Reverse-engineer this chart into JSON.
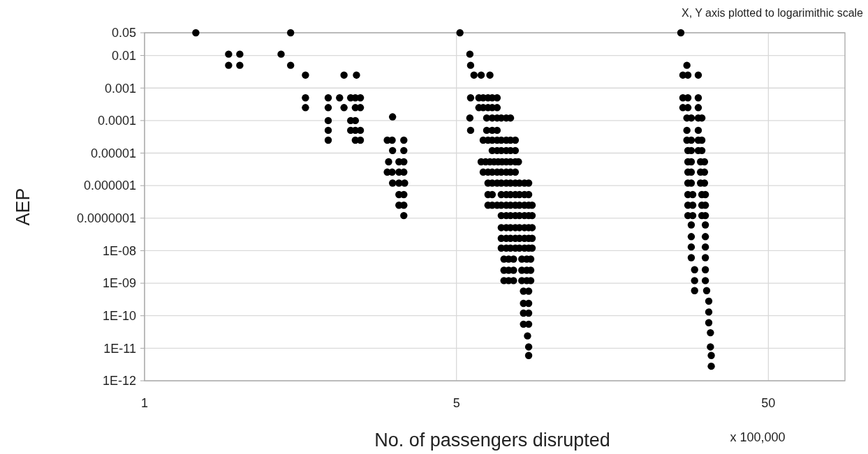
{
  "chart_data": {
    "type": "scatter",
    "xlabel": "No. of passengers disrupted",
    "ylabel": "AEP",
    "annotations": [
      "X, Y axis plotted to logarimithic scale",
      "x 100,000"
    ],
    "log": "xy",
    "grid": true,
    "marker": "circle",
    "xlim": [
      0.5,
      88
    ],
    "xticks": [
      {
        "value": 0.5,
        "label": "1"
      },
      5,
      50
    ],
    "ylim": [
      1e-12,
      0.05
    ],
    "yticks": [
      0.05,
      0.01,
      0.001,
      0.0001,
      {
        "value": 1e-05,
        "label": "0.00001"
      },
      {
        "value": 1e-06,
        "label": "0.000001"
      },
      {
        "value": 1e-07,
        "label": "0.0000001"
      },
      {
        "value": 1e-08,
        "label": "1E-08"
      },
      {
        "value": 1e-09,
        "label": "1E-09"
      },
      {
        "value": 1e-10,
        "label": "1E-10"
      },
      {
        "value": 1e-11,
        "label": "1E-11"
      },
      {
        "value": 1e-12,
        "label": "1E-12"
      }
    ],
    "series": [
      {
        "color": "#000000",
        "x": [
          0.73,
          1.47,
          0.93,
          1.01,
          1.37,
          0.93,
          1.01,
          1.47,
          1.64,
          2.18,
          2.39
        ],
        "values": [
          0.05,
          0.05,
          0.011,
          0.011,
          0.011,
          0.005,
          0.005,
          0.005,
          0.0025,
          0.0025,
          0.0025
        ]
      },
      {
        "color": "#000000",
        "x": [
          1.64,
          1.94,
          2.11,
          2.29,
          2.37,
          2.46,
          1.64,
          1.94,
          2.18,
          2.37,
          2.46
        ],
        "values": [
          0.0005,
          0.0005,
          0.0005,
          0.0005,
          0.0005,
          0.0005,
          0.00025,
          0.00025,
          0.00025,
          0.00025,
          0.00025
        ]
      },
      {
        "color": "#000000",
        "x": [
          1.94,
          2.29,
          2.37,
          1.94,
          2.29,
          2.37,
          2.46,
          1.94,
          2.37,
          2.46
        ],
        "values": [
          0.0001,
          0.0001,
          0.0001,
          5e-05,
          5e-05,
          5e-05,
          5e-05,
          2.5e-05,
          2.5e-05,
          2.5e-05
        ]
      },
      {
        "color": "#000000",
        "x": [
          3.12,
          3.0,
          3.11,
          3.39,
          3.12,
          3.39,
          3.03,
          3.27,
          3.39,
          3.0,
          3.11,
          3.27,
          3.39
        ],
        "values": [
          0.00013,
          2.5e-05,
          2.5e-05,
          2.5e-05,
          1.2e-05,
          1.2e-05,
          5.4e-06,
          5.4e-06,
          5.4e-06,
          2.6e-06,
          2.6e-06,
          2.6e-06,
          2.6e-06
        ]
      },
      {
        "color": "#000000",
        "x": [
          3.12,
          3.27,
          3.41,
          3.27,
          3.39,
          3.27,
          3.39,
          3.39
        ],
        "values": [
          1.2e-06,
          1.2e-06,
          1.2e-06,
          5.3e-07,
          5.3e-07,
          2.5e-07,
          2.5e-07,
          1.2e-07
        ]
      },
      {
        "color": "#000000",
        "x": [
          5.13,
          5.52,
          5.55,
          5.69,
          6.0,
          6.4,
          5.55,
          5.9,
          6.09,
          6.31,
          6.51,
          6.75,
          5.9,
          6.09,
          6.31,
          6.51,
          6.75
        ],
        "values": [
          0.05,
          0.011,
          0.005,
          0.0025,
          0.0025,
          0.0025,
          0.0005,
          0.0005,
          0.0005,
          0.0005,
          0.0005,
          0.0005,
          0.00025,
          0.00025,
          0.00025,
          0.00025,
          0.00025
        ]
      },
      {
        "color": "#000000",
        "x": [
          5.52,
          6.25,
          6.51,
          6.75,
          6.96,
          7.22,
          7.45,
          5.55,
          6.25,
          6.51,
          6.75
        ],
        "values": [
          0.00012,
          0.00012,
          0.00012,
          0.00012,
          0.00012,
          0.00012,
          0.00012,
          5e-05,
          5e-05,
          5e-05,
          5e-05
        ]
      },
      {
        "color": "#000000",
        "x": [
          6.09,
          6.31,
          6.51,
          6.75,
          6.96,
          7.22,
          7.45,
          7.72,
          6.51,
          6.75,
          6.96,
          7.22,
          7.45,
          7.72
        ],
        "values": [
          2.5e-05,
          2.5e-05,
          2.5e-05,
          2.5e-05,
          2.5e-05,
          2.5e-05,
          2.5e-05,
          2.5e-05,
          1.2e-05,
          1.2e-05,
          1.2e-05,
          1.2e-05,
          1.2e-05,
          1.2e-05
        ]
      },
      {
        "color": "#000000",
        "x": [
          6.0,
          6.2,
          6.4,
          6.6,
          6.8,
          7.0,
          7.22,
          7.45,
          7.72,
          7.9
        ],
        "values": [
          5.4e-06,
          5.4e-06,
          5.4e-06,
          5.4e-06,
          5.4e-06,
          5.4e-06,
          5.4e-06,
          5.4e-06,
          5.4e-06,
          5.4e-06
        ]
      },
      {
        "color": "#000000",
        "x": [
          6.09,
          6.31,
          6.51,
          6.75,
          6.96,
          7.22,
          7.45,
          7.72
        ],
        "values": [
          2.6e-06,
          2.6e-06,
          2.6e-06,
          2.6e-06,
          2.6e-06,
          2.6e-06,
          2.6e-06,
          2.6e-06
        ]
      },
      {
        "color": "#000000",
        "x": [
          6.31,
          6.51,
          6.75,
          6.96,
          7.22,
          7.45,
          7.72,
          7.96,
          8.26,
          8.52
        ],
        "values": [
          1.2e-06,
          1.2e-06,
          1.2e-06,
          1.2e-06,
          1.2e-06,
          1.2e-06,
          1.2e-06,
          1.2e-06,
          1.2e-06,
          1.2e-06
        ]
      },
      {
        "color": "#000000",
        "x": [
          6.31,
          6.51,
          6.96,
          7.22,
          7.45,
          7.72,
          7.96,
          8.26,
          8.52
        ],
        "values": [
          5.3e-07,
          5.3e-07,
          5.3e-07,
          5.3e-07,
          5.3e-07,
          5.3e-07,
          5.3e-07,
          5.3e-07,
          5.3e-07
        ]
      },
      {
        "color": "#000000",
        "x": [
          6.31,
          6.51,
          6.75,
          6.96,
          7.22,
          7.45,
          7.72,
          7.96,
          8.26,
          8.52,
          8.74
        ],
        "values": [
          2.5e-07,
          2.5e-07,
          2.5e-07,
          2.5e-07,
          2.5e-07,
          2.5e-07,
          2.5e-07,
          2.5e-07,
          2.5e-07,
          2.5e-07,
          2.5e-07
        ]
      },
      {
        "color": "#000000",
        "x": [
          6.96,
          7.22,
          7.45,
          7.72,
          7.96,
          8.26,
          8.52,
          8.74,
          6.96,
          7.22,
          7.45,
          7.72,
          7.96,
          8.26,
          8.52,
          8.74
        ],
        "values": [
          1.2e-07,
          1.2e-07,
          1.2e-07,
          1.2e-07,
          1.2e-07,
          1.2e-07,
          1.2e-07,
          1.2e-07,
          5.1e-08,
          5.1e-08,
          5.1e-08,
          5.1e-08,
          5.1e-08,
          5.1e-08,
          5.1e-08,
          5.1e-08
        ]
      },
      {
        "color": "#000000",
        "x": [
          6.96,
          7.22,
          7.45,
          7.72,
          7.96,
          8.26,
          8.52,
          8.74,
          6.96,
          7.22,
          7.45,
          7.72,
          7.96,
          8.26,
          8.52,
          8.74
        ],
        "values": [
          2.4e-08,
          2.4e-08,
          2.4e-08,
          2.4e-08,
          2.4e-08,
          2.4e-08,
          2.4e-08,
          2.4e-08,
          1.2e-08,
          1.2e-08,
          1.2e-08,
          1.2e-08,
          1.2e-08,
          1.2e-08,
          1.2e-08,
          1.2e-08
        ]
      },
      {
        "color": "#000000",
        "x": [
          7.1,
          7.35,
          7.62,
          8.1,
          8.4,
          8.65,
          7.1,
          7.35,
          7.62,
          8.1,
          8.4,
          8.65,
          7.1,
          7.35,
          7.62,
          8.1,
          8.4,
          8.65
        ],
        "values": [
          5.5e-09,
          5.5e-09,
          5.5e-09,
          5.5e-09,
          5.5e-09,
          5.5e-09,
          2.5e-09,
          2.5e-09,
          2.5e-09,
          2.5e-09,
          2.5e-09,
          2.5e-09,
          1.2e-09,
          1.2e-09,
          1.2e-09,
          1.2e-09,
          1.2e-09,
          1.2e-09
        ]
      },
      {
        "color": "#000000",
        "x": [
          8.2,
          8.52,
          8.2,
          8.52,
          8.2,
          8.52,
          8.2,
          8.52,
          8.45,
          8.52,
          8.52
        ],
        "values": [
          5.7e-10,
          5.7e-10,
          2.4e-10,
          2.4e-10,
          1.2e-10,
          1.2e-10,
          5.5e-11,
          5.5e-11,
          2.4e-11,
          1.1e-11,
          6e-12
        ]
      },
      {
        "color": "#000000",
        "x": [
          26.2,
          27.4,
          26.6,
          27.6,
          29.8,
          26.6,
          27.6,
          29.8,
          26.6,
          27.6,
          29.8
        ],
        "values": [
          0.05,
          0.005,
          0.0025,
          0.0025,
          0.0025,
          0.0005,
          0.0005,
          0.0005,
          0.00025,
          0.00025,
          0.00025
        ]
      },
      {
        "color": "#000000",
        "x": [
          27.4,
          28.3,
          29.8,
          30.6,
          27.4,
          29.8,
          27.4,
          28.3,
          29.8,
          30.6,
          27.6,
          28.3,
          29.8,
          30.6
        ],
        "values": [
          0.00012,
          0.00012,
          0.00012,
          0.00012,
          5e-05,
          5e-05,
          2.5e-05,
          2.5e-05,
          2.5e-05,
          2.5e-05,
          1.2e-05,
          1.2e-05,
          1.2e-05,
          1.2e-05
        ]
      },
      {
        "color": "#000000",
        "x": [
          27.6,
          28.3,
          30.3,
          31.2,
          27.6,
          28.3,
          30.3,
          31.2,
          27.6,
          28.3,
          30.3,
          31.2
        ],
        "values": [
          5.4e-06,
          5.4e-06,
          5.4e-06,
          5.4e-06,
          2.6e-06,
          2.6e-06,
          2.6e-06,
          2.6e-06,
          1.2e-06,
          1.2e-06,
          1.2e-06,
          1.2e-06
        ]
      },
      {
        "color": "#000000",
        "x": [
          27.6,
          28.6,
          30.6,
          31.4,
          27.6,
          28.6,
          30.6,
          31.4,
          27.6,
          28.6,
          30.6,
          31.4
        ],
        "values": [
          5.3e-07,
          5.3e-07,
          5.3e-07,
          5.3e-07,
          2.5e-07,
          2.5e-07,
          2.5e-07,
          2.5e-07,
          1.2e-07,
          1.2e-07,
          1.2e-07,
          1.2e-07
        ]
      },
      {
        "color": "#000000",
        "x": [
          28.3,
          31.4,
          28.3,
          31.4,
          28.3,
          31.4,
          28.3,
          31.4,
          29.0,
          31.4,
          29.0,
          31.4,
          29.0,
          31.7
        ],
        "values": [
          6.2e-08,
          6.2e-08,
          2.7e-08,
          2.7e-08,
          1.3e-08,
          1.3e-08,
          6.1e-09,
          6.1e-09,
          2.6e-09,
          2.6e-09,
          1.2e-09,
          1.2e-09,
          5.9e-10,
          5.9e-10
        ]
      },
      {
        "color": "#000000",
        "x": [
          32.2,
          32.2,
          32.2,
          32.6,
          32.6,
          32.8,
          32.8
        ],
        "values": [
          2.8e-10,
          1.3e-10,
          6.1e-11,
          3e-11,
          1.1e-11,
          6e-12,
          2.8e-12
        ]
      }
    ]
  }
}
